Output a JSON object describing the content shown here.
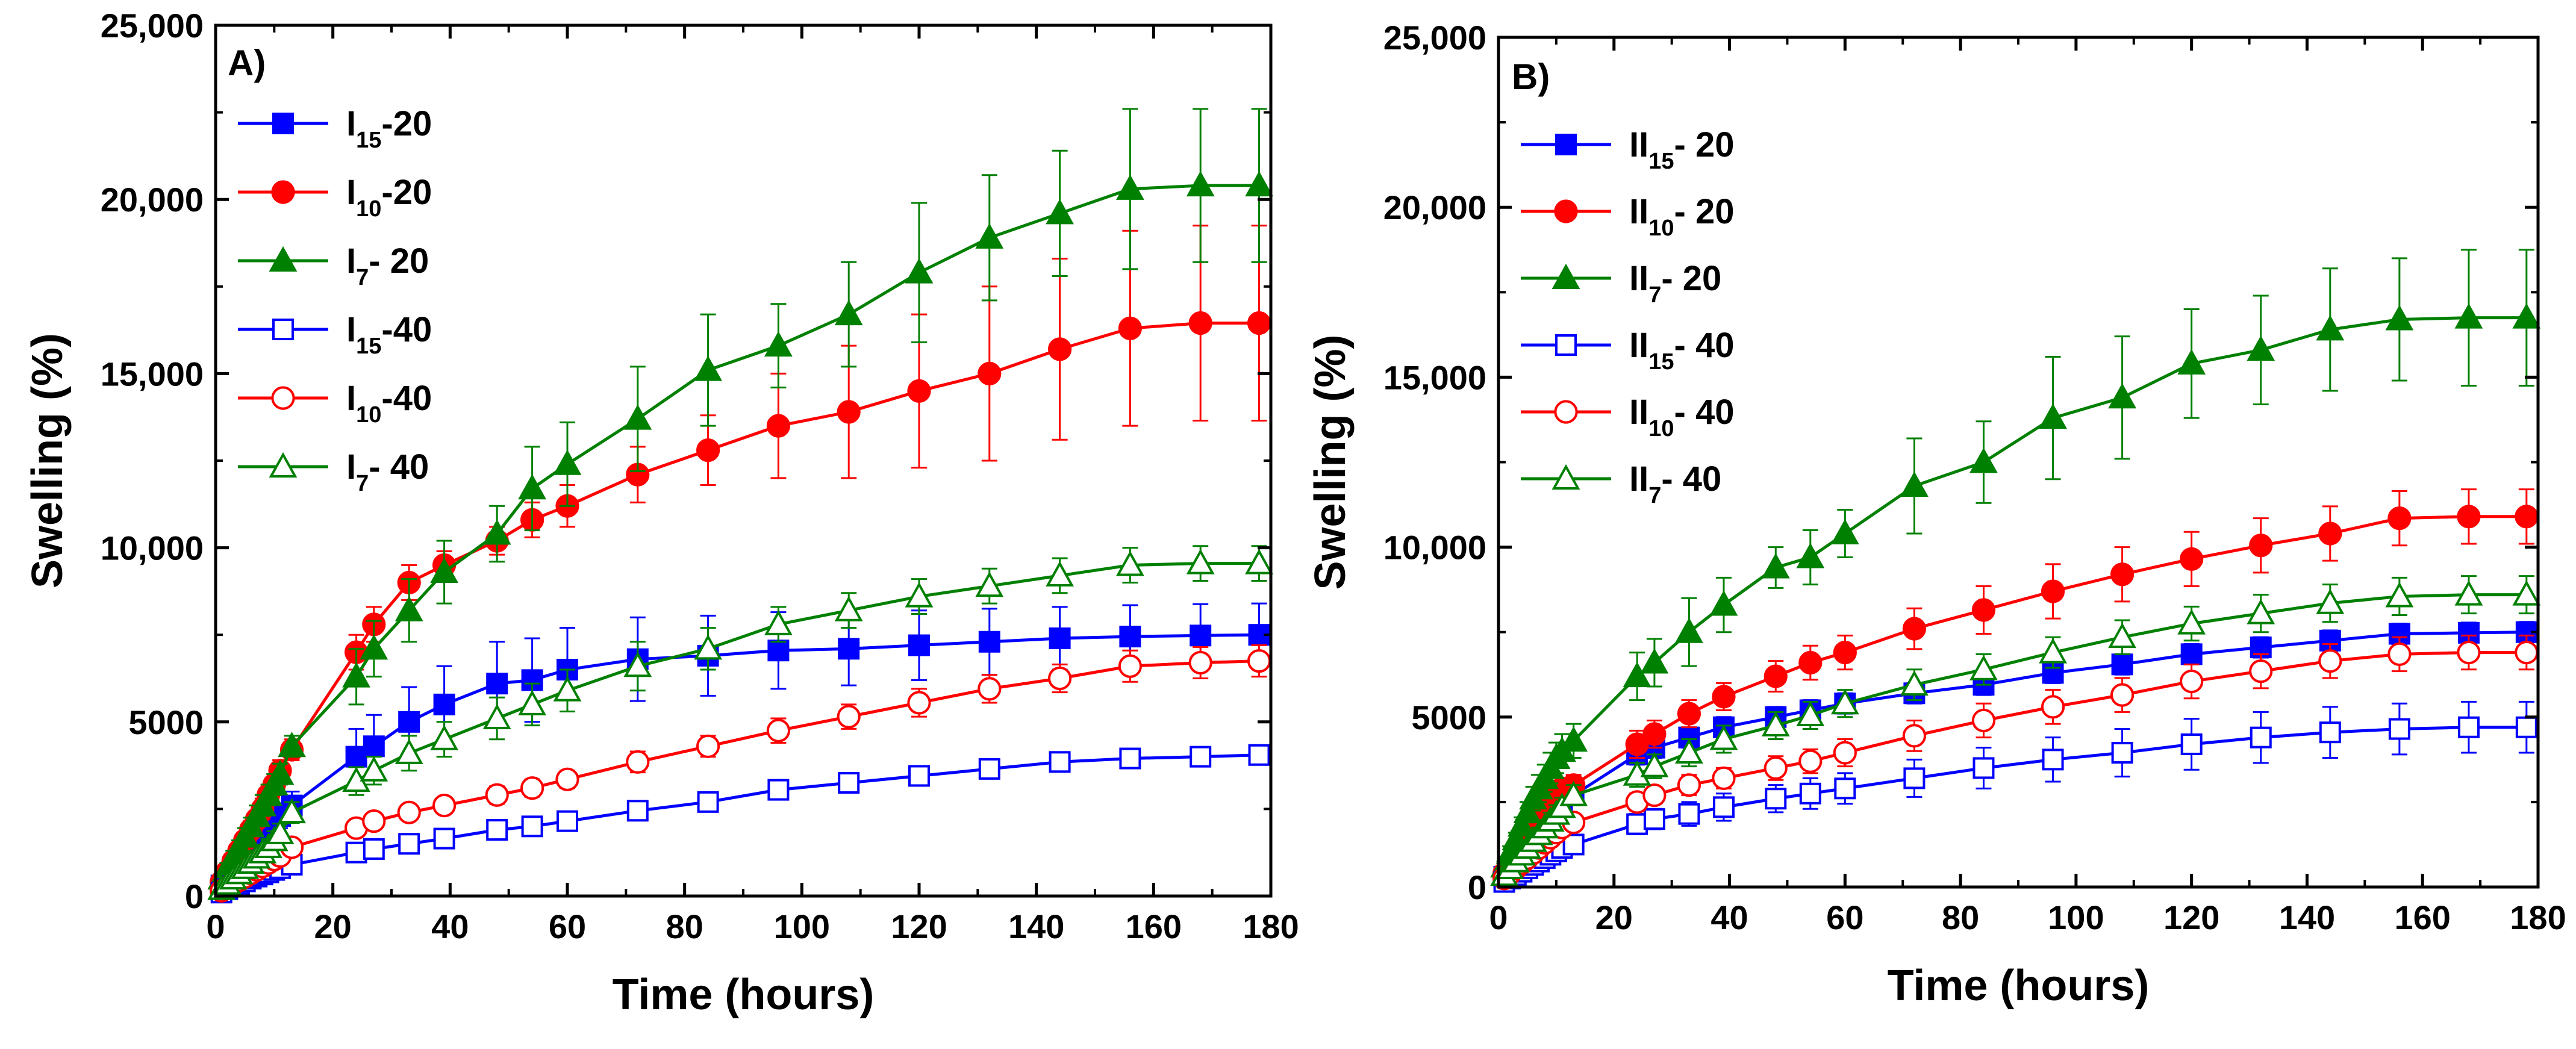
{
  "chart_data": [
    {
      "type": "line",
      "panel_label": "A)",
      "xlabel": "Time (hours)",
      "ylabel": "Swelling (%)",
      "xlim": [
        0,
        180
      ],
      "ylim": [
        0,
        25000
      ],
      "xticks": [
        0,
        20,
        40,
        60,
        80,
        100,
        120,
        140,
        160,
        180
      ],
      "xtick_labels": [
        "0",
        "20",
        "40",
        "60",
        "80",
        "100",
        "120",
        "140",
        "160",
        "180"
      ],
      "yticks": [
        0,
        5000,
        10000,
        15000,
        20000,
        25000
      ],
      "ytick_labels": [
        "0",
        "5000",
        "10,000",
        "15,000",
        "20,000",
        "25,000"
      ],
      "grid": false,
      "legend_position": "top-left",
      "x": [
        1,
        2,
        3,
        4,
        5,
        6,
        7,
        8,
        9,
        10,
        11,
        13,
        24,
        27,
        33,
        39,
        48,
        54,
        60,
        72,
        84,
        96,
        108,
        120,
        132,
        144,
        156,
        168,
        178
      ],
      "series": [
        {
          "name": "I15-20",
          "legend_main": "I",
          "legend_sub": "15",
          "legend_tail": "-20",
          "color": "#0000ff",
          "marker": "square",
          "filled": true,
          "values": [
            300,
            450,
            650,
            800,
            1000,
            1150,
            1350,
            1500,
            1700,
            2000,
            2300,
            2600,
            4000,
            4300,
            5000,
            5500,
            6100,
            6200,
            6500,
            6800,
            6900,
            7050,
            7100,
            7200,
            7300,
            7400,
            7450,
            7480,
            7500
          ],
          "errors": [
            100,
            100,
            150,
            150,
            200,
            200,
            250,
            250,
            300,
            300,
            350,
            400,
            800,
            900,
            1000,
            1100,
            1200,
            1200,
            1200,
            1200,
            1150,
            1100,
            1050,
            1000,
            950,
            900,
            900,
            900,
            900
          ]
        },
        {
          "name": "I10-20",
          "legend_main": "I",
          "legend_sub": "10",
          "legend_tail": "-20",
          "color": "#ff0000",
          "marker": "circle",
          "filled": true,
          "values": [
            400,
            700,
            1000,
            1300,
            1600,
            1900,
            2200,
            2500,
            2900,
            3200,
            3600,
            4200,
            7000,
            7800,
            9000,
            9500,
            10200,
            10800,
            11200,
            12100,
            12800,
            13500,
            13900,
            14500,
            15000,
            15700,
            16300,
            16450,
            16450
          ],
          "errors": [
            100,
            150,
            150,
            200,
            200,
            250,
            250,
            300,
            300,
            300,
            300,
            300,
            500,
            500,
            500,
            400,
            400,
            500,
            600,
            800,
            1000,
            1500,
            1900,
            2200,
            2500,
            2600,
            2800,
            2800,
            2800
          ]
        },
        {
          "name": "I7-20",
          "legend_main": "I",
          "legend_sub": "7",
          "legend_tail": "- 20",
          "color": "#008000",
          "marker": "triangle",
          "filled": true,
          "values": [
            500,
            800,
            1100,
            1400,
            1700,
            2000,
            2300,
            2600,
            2900,
            3200,
            3500,
            4300,
            6300,
            7100,
            8200,
            9300,
            10400,
            11700,
            12400,
            13700,
            15100,
            15800,
            16700,
            17900,
            18900,
            19600,
            20300,
            20400,
            20400
          ],
          "errors": [
            100,
            150,
            200,
            200,
            250,
            250,
            300,
            300,
            300,
            300,
            300,
            300,
            800,
            800,
            900,
            900,
            800,
            1200,
            1200,
            1500,
            1600,
            1200,
            1500,
            2000,
            1800,
            1800,
            2300,
            2200,
            2200
          ]
        },
        {
          "name": "I15-40",
          "legend_main": "I",
          "legend_sub": "15",
          "legend_tail": "-40",
          "color": "#0000ff",
          "marker": "square",
          "filled": false,
          "values": [
            100,
            200,
            280,
            350,
            420,
            500,
            560,
            620,
            680,
            750,
            800,
            900,
            1250,
            1350,
            1500,
            1650,
            1900,
            2000,
            2150,
            2450,
            2700,
            3050,
            3250,
            3450,
            3650,
            3850,
            3950,
            4000,
            4050
          ],
          "errors": [
            50,
            50,
            60,
            70,
            80,
            90,
            100,
            100,
            110,
            120,
            130,
            150,
            150,
            150,
            150,
            150,
            150,
            150,
            150,
            150,
            150,
            150,
            150,
            150,
            150,
            150,
            150,
            150,
            150
          ]
        },
        {
          "name": "I10-40",
          "legend_main": "I",
          "legend_sub": "10",
          "legend_tail": "-40",
          "color": "#ff0000",
          "marker": "circle",
          "filled": false,
          "values": [
            150,
            250,
            350,
            450,
            550,
            650,
            750,
            850,
            950,
            1050,
            1150,
            1400,
            1950,
            2150,
            2400,
            2600,
            2900,
            3100,
            3350,
            3850,
            4300,
            4750,
            5150,
            5550,
            5950,
            6250,
            6600,
            6700,
            6750
          ],
          "errors": [
            50,
            60,
            70,
            80,
            90,
            100,
            110,
            120,
            130,
            140,
            150,
            150,
            200,
            200,
            200,
            200,
            250,
            250,
            250,
            300,
            300,
            350,
            350,
            400,
            400,
            400,
            450,
            450,
            450
          ]
        },
        {
          "name": "I7-40",
          "legend_main": "I",
          "legend_sub": "7",
          "legend_tail": "- 40",
          "color": "#008000",
          "marker": "triangle",
          "filled": false,
          "values": [
            200,
            350,
            500,
            650,
            800,
            950,
            1100,
            1250,
            1400,
            1600,
            1800,
            2400,
            3300,
            3600,
            4100,
            4500,
            5100,
            5500,
            5900,
            6600,
            7100,
            7800,
            8200,
            8600,
            8900,
            9200,
            9500,
            9550,
            9550
          ],
          "errors": [
            80,
            100,
            120,
            140,
            160,
            180,
            200,
            220,
            240,
            260,
            280,
            300,
            400,
            400,
            500,
            500,
            600,
            600,
            600,
            700,
            600,
            500,
            500,
            500,
            500,
            500,
            500,
            500,
            500
          ]
        }
      ]
    },
    {
      "type": "line",
      "panel_label": "B)",
      "xlabel": "Time (hours)",
      "ylabel": "Swelling (%)",
      "xlim": [
        0,
        180
      ],
      "ylim": [
        0,
        25000
      ],
      "xticks": [
        0,
        20,
        40,
        60,
        80,
        100,
        120,
        140,
        160,
        180
      ],
      "xtick_labels": [
        "0",
        "20",
        "40",
        "60",
        "80",
        "100",
        "120",
        "140",
        "160",
        "180"
      ],
      "yticks": [
        0,
        5000,
        10000,
        15000,
        20000,
        25000
      ],
      "ytick_labels": [
        "0",
        "5000",
        "10,000",
        "15,000",
        "20,000",
        "25,000"
      ],
      "grid": false,
      "legend_position": "top-left",
      "x": [
        1,
        2,
        3,
        4,
        5,
        6,
        7,
        8,
        9,
        10,
        11,
        13,
        24,
        27,
        33,
        39,
        48,
        54,
        60,
        72,
        84,
        96,
        108,
        120,
        132,
        144,
        156,
        168,
        178
      ],
      "series": [
        {
          "name": "II15-20",
          "legend_main": "II",
          "legend_sub": "15",
          "legend_tail": "- 20",
          "color": "#0000ff",
          "marker": "square",
          "filled": true,
          "values": [
            300,
            500,
            700,
            900,
            1100,
            1300,
            1500,
            1700,
            1900,
            2100,
            2300,
            2700,
            3900,
            4100,
            4400,
            4700,
            5000,
            5200,
            5400,
            5700,
            5950,
            6300,
            6550,
            6850,
            7050,
            7250,
            7450,
            7480,
            7500
          ],
          "errors": [
            100,
            100,
            150,
            150,
            200,
            200,
            250,
            250,
            300,
            300,
            300,
            300,
            300,
            300,
            300,
            300,
            300,
            300,
            300,
            300,
            300,
            300,
            300,
            300,
            300,
            300,
            300,
            300,
            300
          ]
        },
        {
          "name": "II10-20",
          "legend_main": "II",
          "legend_sub": "10",
          "legend_tail": "- 20",
          "color": "#ff0000",
          "marker": "circle",
          "filled": true,
          "values": [
            400,
            650,
            900,
            1150,
            1400,
            1650,
            1900,
            2150,
            2400,
            2650,
            2900,
            3000,
            4200,
            4500,
            5100,
            5600,
            6200,
            6600,
            6900,
            7600,
            8150,
            8700,
            9200,
            9650,
            10050,
            10400,
            10850,
            10900,
            10900
          ],
          "errors": [
            100,
            100,
            150,
            150,
            200,
            200,
            200,
            250,
            250,
            250,
            300,
            300,
            400,
            400,
            400,
            400,
            450,
            500,
            500,
            600,
            700,
            800,
            800,
            800,
            800,
            800,
            800,
            800,
            800
          ]
        },
        {
          "name": "II7-20",
          "legend_main": "II",
          "legend_sub": "7",
          "legend_tail": "- 20",
          "color": "#008000",
          "marker": "triangle",
          "filled": true,
          "values": [
            600,
            1000,
            1400,
            1800,
            2200,
            2600,
            2900,
            3200,
            3500,
            3800,
            4000,
            4300,
            6200,
            6600,
            7500,
            8300,
            9400,
            9700,
            10400,
            11800,
            12500,
            13800,
            14400,
            15400,
            15800,
            16400,
            16700,
            16750,
            16750
          ],
          "errors": [
            150,
            200,
            200,
            250,
            300,
            350,
            400,
            400,
            450,
            450,
            500,
            500,
            700,
            700,
            1000,
            800,
            600,
            800,
            700,
            1400,
            1200,
            1800,
            1800,
            1600,
            1600,
            1800,
            1800,
            2000,
            2000
          ]
        },
        {
          "name": "II15-40",
          "legend_main": "II",
          "legend_sub": "15",
          "legend_tail": "- 40",
          "color": "#0000ff",
          "marker": "square",
          "filled": false,
          "values": [
            150,
            250,
            350,
            450,
            550,
            650,
            750,
            850,
            950,
            1050,
            1150,
            1250,
            1850,
            2000,
            2150,
            2350,
            2600,
            2750,
            2900,
            3200,
            3500,
            3750,
            3950,
            4200,
            4400,
            4550,
            4650,
            4700,
            4700
          ],
          "errors": [
            50,
            60,
            70,
            80,
            90,
            100,
            110,
            120,
            130,
            140,
            150,
            200,
            300,
            300,
            350,
            400,
            400,
            450,
            450,
            550,
            600,
            650,
            700,
            750,
            750,
            750,
            750,
            750,
            750
          ]
        },
        {
          "name": "II10-40",
          "legend_main": "II",
          "legend_sub": "10",
          "legend_tail": "- 40",
          "color": "#ff0000",
          "marker": "circle",
          "filled": false,
          "values": [
            250,
            400,
            550,
            700,
            850,
            1000,
            1150,
            1300,
            1450,
            1600,
            1750,
            1900,
            2500,
            2700,
            3000,
            3200,
            3500,
            3700,
            3950,
            4450,
            4900,
            5300,
            5650,
            6050,
            6350,
            6650,
            6850,
            6900,
            6900
          ],
          "errors": [
            60,
            70,
            80,
            90,
            100,
            110,
            120,
            130,
            140,
            150,
            160,
            200,
            250,
            250,
            300,
            300,
            350,
            350,
            400,
            450,
            500,
            500,
            500,
            500,
            500,
            500,
            500,
            500,
            500
          ]
        },
        {
          "name": "II7-40",
          "legend_main": "II",
          "legend_sub": "7",
          "legend_tail": "-  40",
          "color": "#008000",
          "marker": "triangle",
          "filled": false,
          "values": [
            350,
            550,
            750,
            950,
            1150,
            1350,
            1550,
            1750,
            1950,
            2150,
            2350,
            2700,
            3300,
            3550,
            3950,
            4350,
            4750,
            5050,
            5400,
            5950,
            6400,
            6900,
            7350,
            7750,
            8050,
            8350,
            8550,
            8600,
            8600
          ],
          "errors": [
            80,
            100,
            120,
            140,
            160,
            180,
            200,
            220,
            240,
            260,
            280,
            300,
            350,
            350,
            400,
            400,
            400,
            400,
            400,
            450,
            450,
            450,
            500,
            500,
            550,
            550,
            550,
            550,
            550
          ]
        }
      ]
    }
  ]
}
